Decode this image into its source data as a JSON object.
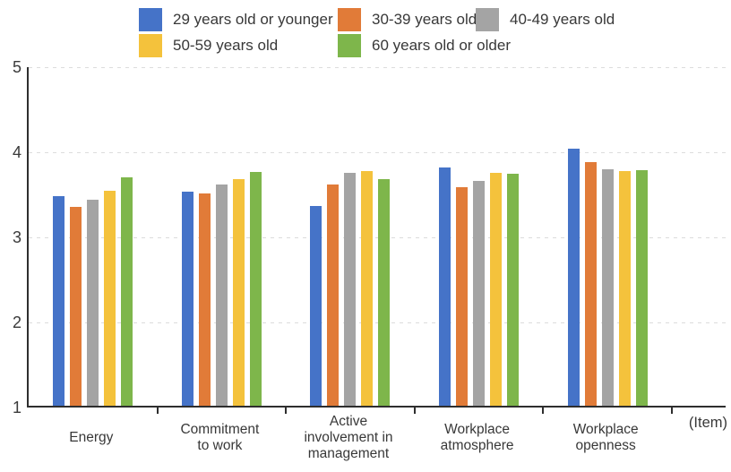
{
  "legend": {
    "items": [
      {
        "label": "29 years old or younger",
        "color": "#4573C8"
      },
      {
        "label": "30-39 years old",
        "color": "#E17B38"
      },
      {
        "label": "40-49 years old",
        "color": "#A4A4A4"
      },
      {
        "label": "50-59 years old",
        "color": "#F4C23C"
      },
      {
        "label": "60 years old or older",
        "color": "#7EB64B"
      }
    ]
  },
  "axis_note": "(Item)",
  "chart_data": {
    "type": "bar",
    "title": "",
    "xlabel": "(Item)",
    "ylabel": "",
    "ylim": [
      1,
      5
    ],
    "y_ticks": [
      1,
      2,
      3,
      4,
      5
    ],
    "grid": "horizontal dashed",
    "legend_position": "top",
    "categories": [
      "Energy",
      "Commitment to work",
      "Active involvement in management",
      "Workplace atmosphere",
      "Workplace openness"
    ],
    "category_label_lines": [
      [
        "Energy"
      ],
      [
        "Commitment",
        "to work"
      ],
      [
        "Active",
        "involvement in",
        "management"
      ],
      [
        "Workplace",
        "atmosphere"
      ],
      [
        "Workplace",
        "openness"
      ]
    ],
    "series": [
      {
        "name": "29 years old or younger",
        "color": "#4573C8",
        "values": [
          3.46,
          3.52,
          3.35,
          3.8,
          4.02
        ]
      },
      {
        "name": "30-39 years old",
        "color": "#E17B38",
        "values": [
          3.34,
          3.49,
          3.6,
          3.57,
          3.86
        ]
      },
      {
        "name": "40-49 years old",
        "color": "#A4A4A4",
        "values": [
          3.42,
          3.6,
          3.74,
          3.64,
          3.78
        ]
      },
      {
        "name": "50-59 years old",
        "color": "#F4C23C",
        "values": [
          3.53,
          3.66,
          3.76,
          3.74,
          3.76
        ]
      },
      {
        "name": "60 years old or older",
        "color": "#7EB64B",
        "values": [
          3.68,
          3.75,
          3.66,
          3.73,
          3.77
        ]
      }
    ]
  }
}
